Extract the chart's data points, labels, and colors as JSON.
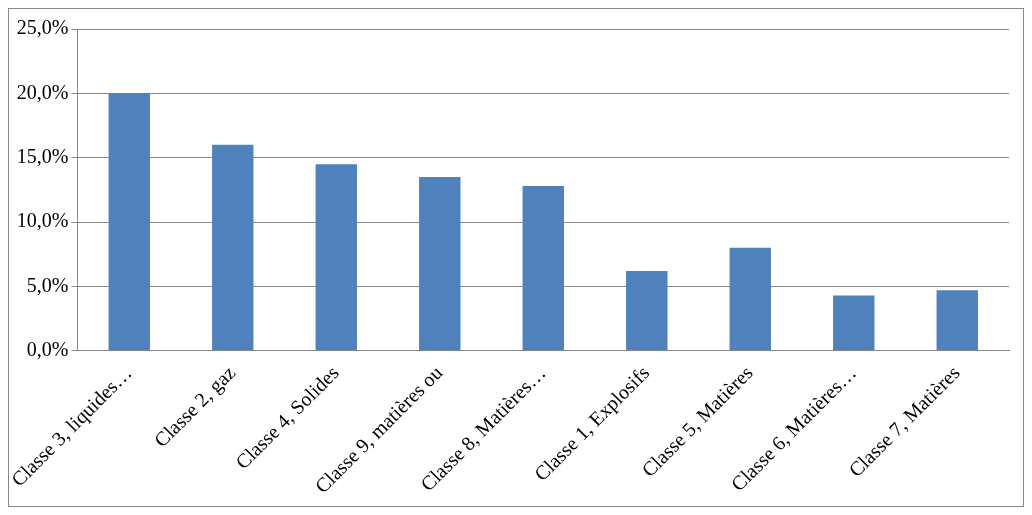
{
  "chart_data": {
    "type": "bar",
    "categories": [
      "Classe 3, liquides…",
      "Classe 2, gaz",
      "Classe 4, Solides",
      "Classe 9, matières ou",
      "Classe 8, Matières…",
      "Classe 1, Explosifs",
      "Classe 5, Matières",
      "Classe 6, Matières…",
      "Classe 7, Matières"
    ],
    "values": [
      20.0,
      16.0,
      14.5,
      13.5,
      12.8,
      6.2,
      8.0,
      4.3,
      4.7
    ],
    "color": "#4f81bd",
    "ylim": [
      0,
      25
    ],
    "yticks": [
      {
        "value": 0,
        "label": "0,0%"
      },
      {
        "value": 5,
        "label": "5,0%"
      },
      {
        "value": 10,
        "label": "10,0%"
      },
      {
        "value": 15,
        "label": "15,0%"
      },
      {
        "value": 20,
        "label": "20,0%"
      },
      {
        "value": 25,
        "label": "25,0%"
      }
    ],
    "grid": "y",
    "legend": false
  }
}
